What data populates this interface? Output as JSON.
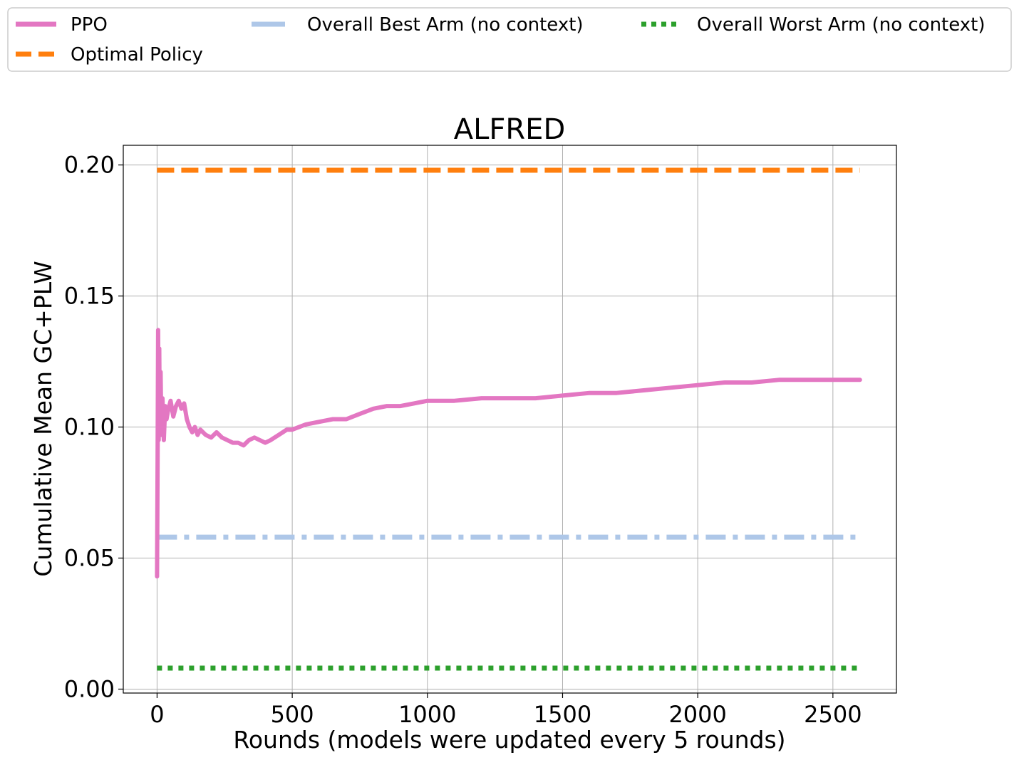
{
  "chart_data": {
    "type": "line",
    "title": "ALFRED",
    "xlabel": "Rounds (models were updated every 5 rounds)",
    "ylabel": "Cumulative Mean GC+PLW",
    "xlim": [
      -125,
      2735
    ],
    "ylim": [
      -0.0015,
      0.2075
    ],
    "x_ticks": [
      0,
      500,
      1000,
      1500,
      2000,
      2500
    ],
    "x_tick_labels": [
      "0",
      "500",
      "1000",
      "1500",
      "2000",
      "2500"
    ],
    "y_ticks": [
      0.0,
      0.05,
      0.1,
      0.15,
      0.2
    ],
    "y_tick_labels": [
      "0.00",
      "0.05",
      "0.10",
      "0.15",
      "0.20"
    ],
    "grid": true,
    "legend_placement": "top, above plot, 3 columns",
    "series": [
      {
        "name": "PPO",
        "style": "solid",
        "color": "#e377c2",
        "x": [
          0,
          2,
          4,
          6,
          8,
          10,
          13,
          16,
          20,
          25,
          30,
          35,
          40,
          50,
          60,
          70,
          80,
          90,
          100,
          110,
          120,
          130,
          140,
          150,
          160,
          180,
          200,
          220,
          240,
          260,
          280,
          300,
          320,
          340,
          360,
          380,
          400,
          420,
          450,
          480,
          500,
          550,
          600,
          650,
          700,
          750,
          800,
          850,
          900,
          950,
          1000,
          1100,
          1200,
          1300,
          1400,
          1500,
          1600,
          1700,
          1800,
          1900,
          2000,
          2100,
          2200,
          2300,
          2400,
          2500,
          2600
        ],
        "values": [
          0.043,
          0.09,
          0.137,
          0.095,
          0.13,
          0.1,
          0.121,
          0.097,
          0.111,
          0.095,
          0.108,
          0.103,
          0.106,
          0.11,
          0.104,
          0.108,
          0.11,
          0.107,
          0.109,
          0.103,
          0.1,
          0.098,
          0.1,
          0.097,
          0.099,
          0.097,
          0.096,
          0.098,
          0.096,
          0.095,
          0.094,
          0.094,
          0.093,
          0.095,
          0.096,
          0.095,
          0.094,
          0.095,
          0.097,
          0.099,
          0.099,
          0.101,
          0.102,
          0.103,
          0.103,
          0.105,
          0.107,
          0.108,
          0.108,
          0.109,
          0.11,
          0.11,
          0.111,
          0.111,
          0.111,
          0.112,
          0.113,
          0.113,
          0.114,
          0.115,
          0.116,
          0.117,
          0.117,
          0.118,
          0.118,
          0.118,
          0.118
        ]
      },
      {
        "name": "Optimal Policy",
        "style": "dashed",
        "color": "#ff7f0e",
        "x": [
          0,
          2600
        ],
        "values": [
          0.198,
          0.198
        ]
      },
      {
        "name": "Overall Best Arm (no context)",
        "style": "dashdot",
        "color": "#aec7e8",
        "x": [
          0,
          2600
        ],
        "values": [
          0.058,
          0.058
        ]
      },
      {
        "name": "Overall Worst Arm (no context)",
        "style": "dotted",
        "color": "#2ca02c",
        "x": [
          0,
          2600
        ],
        "values": [
          0.008,
          0.008
        ]
      }
    ]
  }
}
